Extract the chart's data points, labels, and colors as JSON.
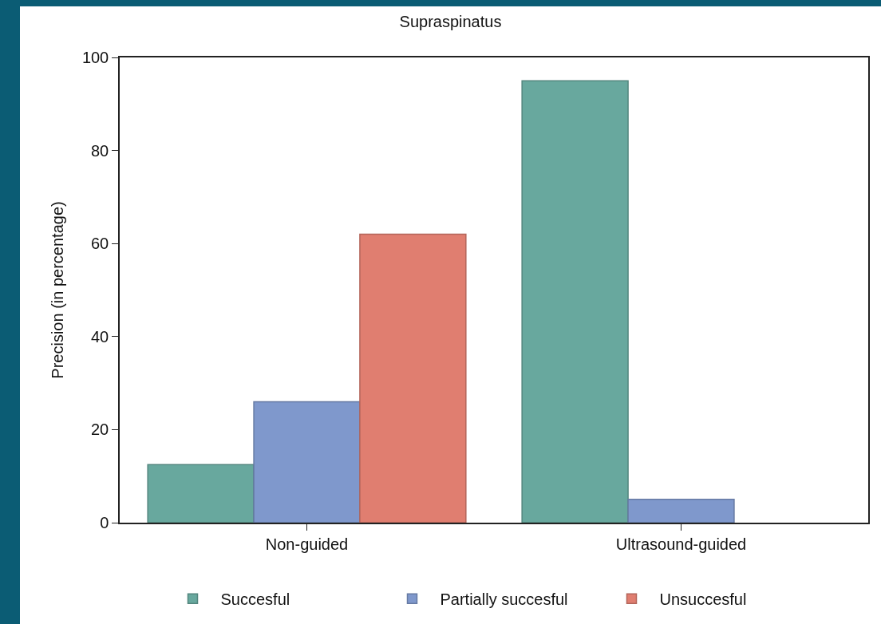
{
  "chart_data": {
    "type": "bar",
    "title": "Supraspinatus",
    "ylabel": "Precision (in percentage)",
    "categories": [
      "Non-guided",
      "Ultrasound-guided"
    ],
    "series": [
      {
        "name": "Succesful",
        "color": "#68a89e",
        "values": [
          12.5,
          95
        ]
      },
      {
        "name": "Partially succesful",
        "color": "#7f98cc",
        "values": [
          26,
          5
        ]
      },
      {
        "name": "Unsuccesful",
        "color": "#e07e70",
        "values": [
          62,
          null
        ]
      }
    ],
    "ylim": [
      0,
      100
    ],
    "yticks": [
      0,
      20,
      40,
      60,
      80,
      100
    ],
    "grid": false,
    "legend": "bottom"
  }
}
